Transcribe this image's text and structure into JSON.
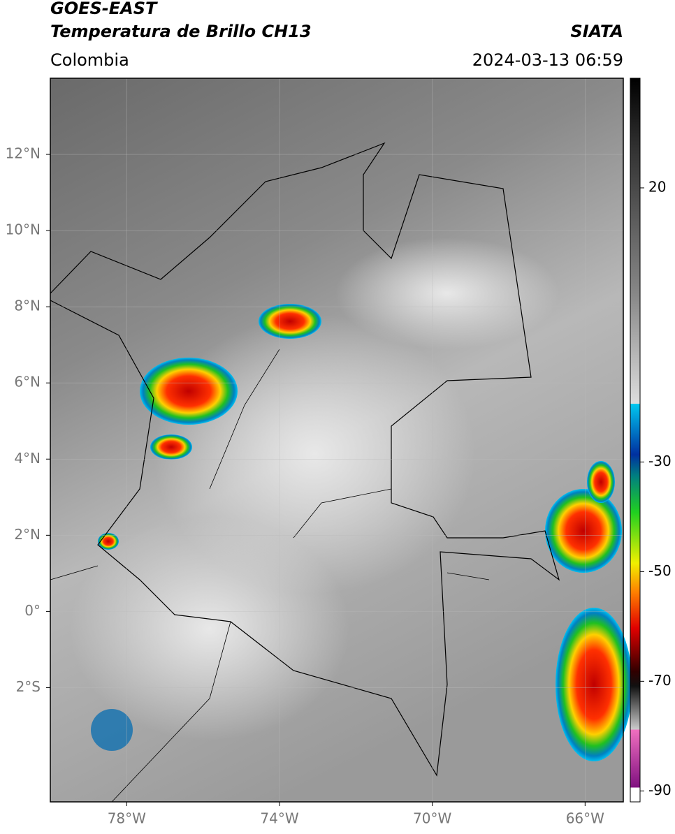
{
  "header": {
    "title": "GOES-EAST",
    "subtitle": "Temperatura de Brillo CH13",
    "source": "SIATA",
    "region": "Colombia",
    "datetime": "2024-03-13 06:59"
  },
  "map": {
    "xlim": [
      -80,
      -65
    ],
    "ylim": [
      -5,
      14
    ],
    "xticks": [
      {
        "value": -78,
        "label": "78°W"
      },
      {
        "value": -74,
        "label": "74°W"
      },
      {
        "value": -70,
        "label": "70°W"
      },
      {
        "value": -66,
        "label": "66°W"
      }
    ],
    "yticks": [
      {
        "value": 12,
        "label": "12°N"
      },
      {
        "value": 10,
        "label": "10°N"
      },
      {
        "value": 8,
        "label": "8°N"
      },
      {
        "value": 6,
        "label": "6°N"
      },
      {
        "value": 4,
        "label": "4°N"
      },
      {
        "value": 2,
        "label": "2°N"
      },
      {
        "value": 0,
        "label": "0°"
      },
      {
        "value": -2,
        "label": "2°S"
      }
    ],
    "grid": true
  },
  "colorbar": {
    "lim": [
      -92,
      40
    ],
    "ticks": [
      20,
      -30,
      -50,
      -70,
      -90
    ]
  }
}
